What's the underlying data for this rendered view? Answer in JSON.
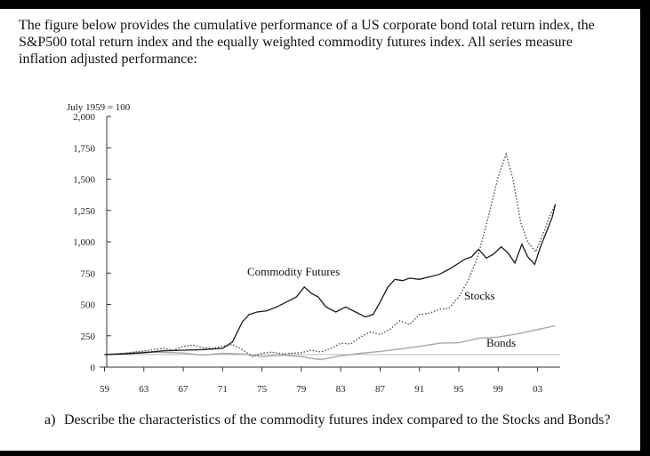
{
  "intro": "The figure below provides the cumulative performance of a US corporate bond total return index, the S&P500 total return index and the equally weighted commodity futures index. All series measure inflation adjusted performance:",
  "question": {
    "number": "a)",
    "text": "Describe the characteristics of the commodity futures index compared to the Stocks and Bonds?"
  },
  "chart_data": {
    "type": "line",
    "index_note": "July 1959 = 100",
    "ylim": [
      0,
      2000
    ],
    "y_ticks": [
      0,
      250,
      500,
      750,
      1000,
      1250,
      1500,
      1750,
      2000
    ],
    "y_tick_labels": [
      "0",
      "250",
      "500",
      "750",
      "1,000",
      "1,250",
      "1,500",
      "1,750",
      "2,000"
    ],
    "xlim": [
      1959,
      2005
    ],
    "x_ticks": [
      1959,
      1963,
      1967,
      1971,
      1975,
      1979,
      1983,
      1987,
      1991,
      1995,
      1999,
      2003
    ],
    "x_tick_labels": [
      "59",
      "63",
      "67",
      "71",
      "75",
      "79",
      "83",
      "87",
      "91",
      "95",
      "99",
      "03"
    ],
    "reference_line": 100,
    "series": [
      {
        "name": "Commodity Futures",
        "style": "solid-dark",
        "color": "#222222",
        "x": [
          1959,
          1961,
          1963,
          1965,
          1967,
          1969,
          1971,
          1972,
          1973,
          1973.7,
          1974.5,
          1975.5,
          1976.5,
          1977.5,
          1978.5,
          1979.3,
          1980,
          1980.7,
          1981.5,
          1982.5,
          1983.5,
          1984.5,
          1985.5,
          1986.3,
          1987,
          1987.8,
          1988.5,
          1989.3,
          1990,
          1991,
          1992,
          1993,
          1994,
          1995,
          1995.6,
          1996.3,
          1997,
          1997.8,
          1998.5,
          1999.3,
          2000,
          2000.7,
          2001.4,
          2002,
          2002.7,
          2003.3,
          2004,
          2004.5,
          2004.8
        ],
        "values": [
          100,
          105,
          115,
          130,
          135,
          140,
          150,
          200,
          360,
          420,
          440,
          450,
          480,
          520,
          560,
          640,
          590,
          560,
          480,
          440,
          480,
          440,
          400,
          420,
          520,
          640,
          700,
          690,
          710,
          700,
          720,
          740,
          780,
          830,
          860,
          880,
          940,
          870,
          900,
          960,
          910,
          830,
          980,
          880,
          820,
          960,
          1100,
          1200,
          1300
        ]
      },
      {
        "name": "Stocks",
        "style": "dotted",
        "color": "#444444",
        "x": [
          1959,
          1961,
          1963,
          1965,
          1966,
          1967,
          1968,
          1969,
          1970,
          1971,
          1972,
          1973,
          1974,
          1975,
          1976,
          1977,
          1978,
          1979,
          1980,
          1981,
          1982,
          1983,
          1984,
          1985,
          1986,
          1987,
          1988,
          1989,
          1990,
          1991,
          1992,
          1993,
          1994,
          1995,
          1996,
          1997,
          1998,
          1999,
          1999.8,
          2000.5,
          2001.3,
          2002,
          2002.8,
          2003.5,
          2004.2,
          2004.8
        ],
        "values": [
          100,
          110,
          130,
          150,
          135,
          165,
          175,
          155,
          150,
          165,
          180,
          140,
          85,
          110,
          120,
          105,
          110,
          115,
          135,
          120,
          150,
          190,
          185,
          240,
          280,
          260,
          300,
          370,
          340,
          420,
          430,
          460,
          470,
          560,
          700,
          900,
          1200,
          1520,
          1700,
          1500,
          1150,
          1000,
          920,
          1050,
          1200,
          1300
        ]
      },
      {
        "name": "Bonds",
        "style": "solid-light",
        "color": "#9a9a9a",
        "x": [
          1959,
          1961,
          1963,
          1965,
          1967,
          1969,
          1971,
          1973,
          1975,
          1977,
          1979,
          1980,
          1981,
          1982,
          1983,
          1985,
          1987,
          1989,
          1991,
          1993,
          1995,
          1997,
          1999,
          2001,
          2003,
          2004.8
        ],
        "values": [
          100,
          110,
          120,
          118,
          112,
          95,
          110,
          105,
          85,
          95,
          85,
          70,
          60,
          75,
          90,
          110,
          125,
          145,
          165,
          190,
          195,
          230,
          240,
          265,
          300,
          330
        ]
      }
    ],
    "annotations": [
      "Commodity Futures",
      "Stocks",
      "Bonds"
    ]
  }
}
